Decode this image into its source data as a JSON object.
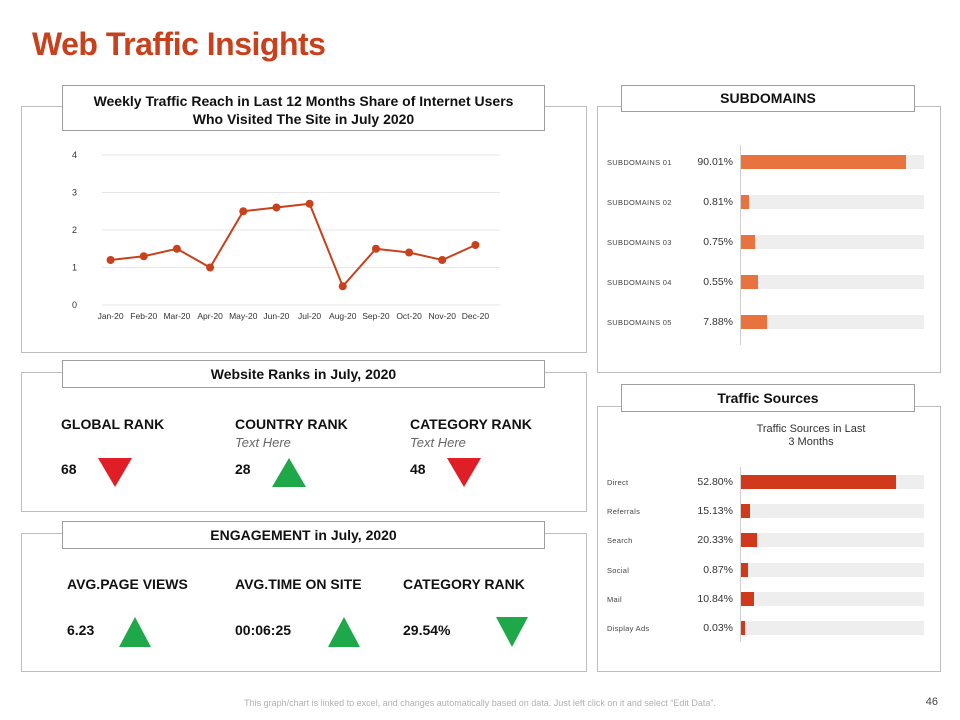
{
  "page": {
    "title": "Web Traffic Insights",
    "footer": "This graph/chart is linked to excel, and changes automatically based on data. Just left click on it and select “Edit Data”.",
    "page_number": "46"
  },
  "colors": {
    "accent": "#C8401C",
    "bar_orange": "#E8733E",
    "bar_red": "#D0391A",
    "up": "#1EA84A",
    "down": "#E01E26"
  },
  "traffic_panel": {
    "header_line1": "Weekly Traffic Reach in Last 12 Months Share of Internet Users",
    "header_line2": "Who Visited The Site in July 2020"
  },
  "chart_data": [
    {
      "type": "line",
      "title": "Weekly Traffic Reach in Last 12 Months Share of Internet Users Who Visited The Site in July 2020",
      "categories": [
        "Jan-20",
        "Feb-20",
        "Mar-20",
        "Apr-20",
        "May-20",
        "Jun-20",
        "Jul-20",
        "Aug-20",
        "Sep-20",
        "Oct-20",
        "Nov-20",
        "Dec-20"
      ],
      "values": [
        1.2,
        1.3,
        1.5,
        1.0,
        2.5,
        2.6,
        2.7,
        0.5,
        1.5,
        1.4,
        1.2,
        1.6
      ],
      "ylim": [
        0,
        4
      ],
      "yticks": [
        "0",
        "1",
        "2",
        "3",
        "4"
      ],
      "xlabel": "",
      "ylabel": "",
      "grid": true
    },
    {
      "type": "bar",
      "orientation": "horizontal",
      "title": "SUBDOMAINS",
      "categories": [
        "SUBDOMAINS 01",
        "SUBDOMAINS 02",
        "SUBDOMAINS 03",
        "SUBDOMAINS 04",
        "SUBDOMAINS 05"
      ],
      "values": [
        90.01,
        0.81,
        0.75,
        0.55,
        7.88
      ],
      "value_labels": [
        "90.01%",
        "0.81%",
        "0.75%",
        "0.55%",
        "7.88%"
      ],
      "display_fraction": [
        0.9,
        0.045,
        0.075,
        0.095,
        0.14
      ],
      "xlim": [
        0,
        100
      ]
    },
    {
      "type": "bar",
      "orientation": "horizontal",
      "title": "Traffic Sources in Last 3 Months",
      "categories": [
        "Direct",
        "Referrals",
        "Search",
        "Social",
        "Mail",
        "Display Ads"
      ],
      "values": [
        52.8,
        15.13,
        20.33,
        0.87,
        10.84,
        0.03
      ],
      "value_labels": [
        "52.80%",
        "15.13%",
        "20.33%",
        "0.87%",
        "10.84%",
        "0.03%"
      ],
      "display_fraction": [
        0.845,
        0.05,
        0.09,
        0.04,
        0.07,
        0.02
      ],
      "xlim": [
        0,
        100
      ]
    }
  ],
  "subdomains": {
    "header": "SUBDOMAINS"
  },
  "traffic_sources": {
    "header": "Traffic Sources",
    "chart_title_line1": "Traffic Sources in Last",
    "chart_title_line2": "3 Months"
  },
  "ranks": {
    "header": "Website Ranks in July, 2020",
    "items": [
      {
        "label": "GLOBAL RANK",
        "sub": "",
        "value": "68",
        "trend": "down"
      },
      {
        "label": "COUNTRY RANK",
        "sub": "Text Here",
        "value": "28",
        "trend": "up"
      },
      {
        "label": "CATEGORY RANK",
        "sub": "Text Here",
        "value": "48",
        "trend": "down"
      }
    ]
  },
  "engagement": {
    "header": "ENGAGEMENT in July, 2020",
    "items": [
      {
        "label": "AVG.PAGE VIEWS",
        "value": "6.23",
        "trend": "up"
      },
      {
        "label": "AVG.TIME ON SITE",
        "value": "00:06:25",
        "trend": "up"
      },
      {
        "label": "CATEGORY RANK",
        "value": "29.54%",
        "trend": "down"
      }
    ]
  }
}
